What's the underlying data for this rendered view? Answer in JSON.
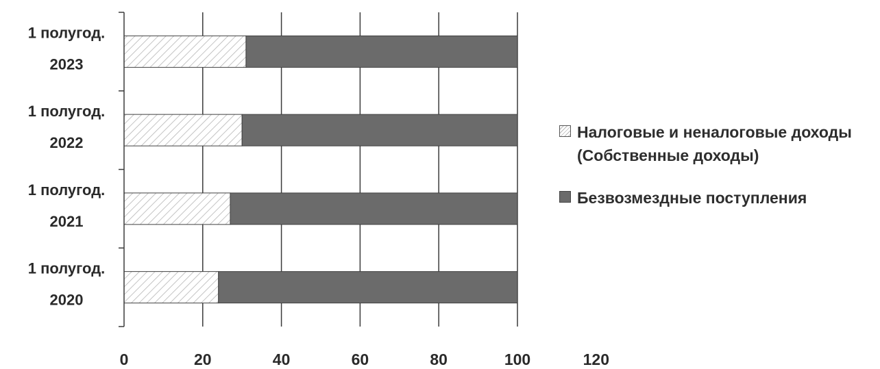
{
  "chart_data": {
    "type": "bar",
    "orientation": "horizontal",
    "stacked": true,
    "categories": [
      "1 полугод. 2023",
      "1 полугод. 2022",
      "1 полугод. 2021",
      "1 полугод. 2020"
    ],
    "category_lines": [
      [
        "1 полугод.",
        "2023"
      ],
      [
        "1 полугод.",
        "2022"
      ],
      [
        "1 полугод.",
        "2021"
      ],
      [
        "1 полугод.",
        "2020"
      ]
    ],
    "series": [
      {
        "name": "Налоговые и неналоговые доходы (Собственные доходы)",
        "values": [
          31,
          30,
          27,
          24
        ],
        "fill": "hatched",
        "color": "#b8b8b8"
      },
      {
        "name": "Безвозмездные поступления",
        "values": [
          69,
          70,
          73,
          76
        ],
        "fill": "solid",
        "color": "#6b6b6b"
      }
    ],
    "x_ticks": [
      "0",
      "20",
      "40",
      "60",
      "80",
      "100",
      "120"
    ],
    "xlim": [
      0,
      120
    ],
    "grid": "vertical",
    "legend_position": "right",
    "title": "",
    "xlabel": "",
    "ylabel": ""
  },
  "legend": {
    "items": [
      {
        "label": "Налоговые и неналоговые доходы (Собственные доходы)",
        "fill": "hatched"
      },
      {
        "label": "Безвозмездные поступления",
        "fill": "solid"
      }
    ]
  }
}
